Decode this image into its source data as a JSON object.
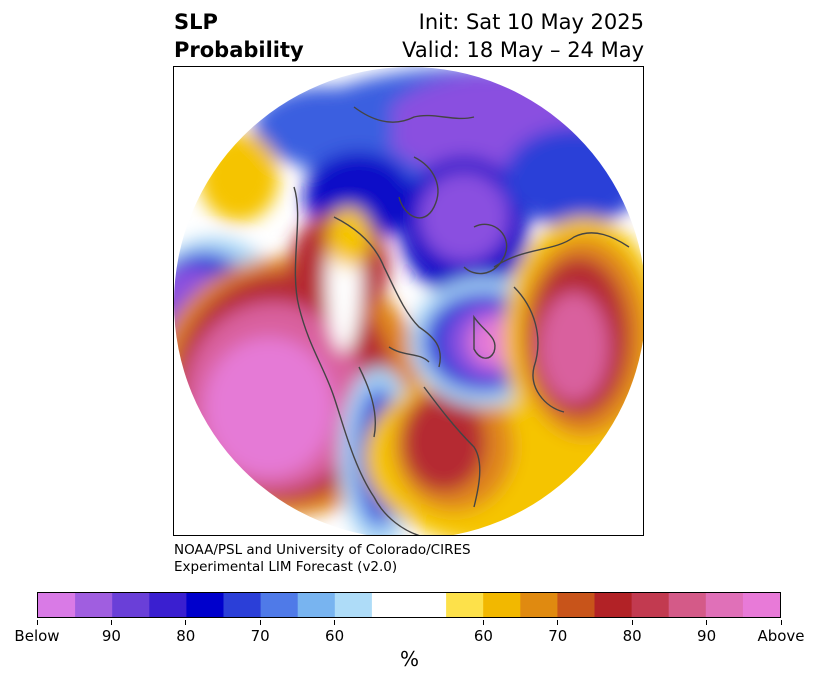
{
  "title": {
    "left_line1": "SLP",
    "left_line2": "Probability",
    "right_line1": "Init: Sat 10 May 2025",
    "right_line2": "Valid: 18 May – 24 May"
  },
  "credit": {
    "line1": "NOAA/PSL and University of Colorado/CIRES",
    "line2": "Experimental LIM Forecast (v2.0)"
  },
  "colorbar": {
    "unit": "%",
    "colors": [
      "#d97ae6",
      "#a05ee0",
      "#6a3fd8",
      "#3a1fd0",
      "#0000cc",
      "#2b3fd8",
      "#4f7ae8",
      "#78b4f0",
      "#aedcf8",
      "#ffffff",
      "#ffffff",
      "#fde14a",
      "#f2b800",
      "#e08a10",
      "#c8541a",
      "#b22226",
      "#c23a50",
      "#d45a88",
      "#e070b8",
      "#e87ad8"
    ],
    "tick_labels": [
      "Below",
      "90",
      "80",
      "70",
      "60",
      "60",
      "70",
      "80",
      "90",
      "Above"
    ]
  },
  "map_colors": {
    "purple": "#8a4fe0",
    "deep_blue": "#0a10c8",
    "blue": "#3a5fe0",
    "light_blue": "#a8d6f6",
    "yellow": "#f5c400",
    "orange": "#e0861a",
    "red": "#b52a30",
    "magenta": "#d9609e",
    "pink": "#e57ad6",
    "coast": "#444444"
  }
}
